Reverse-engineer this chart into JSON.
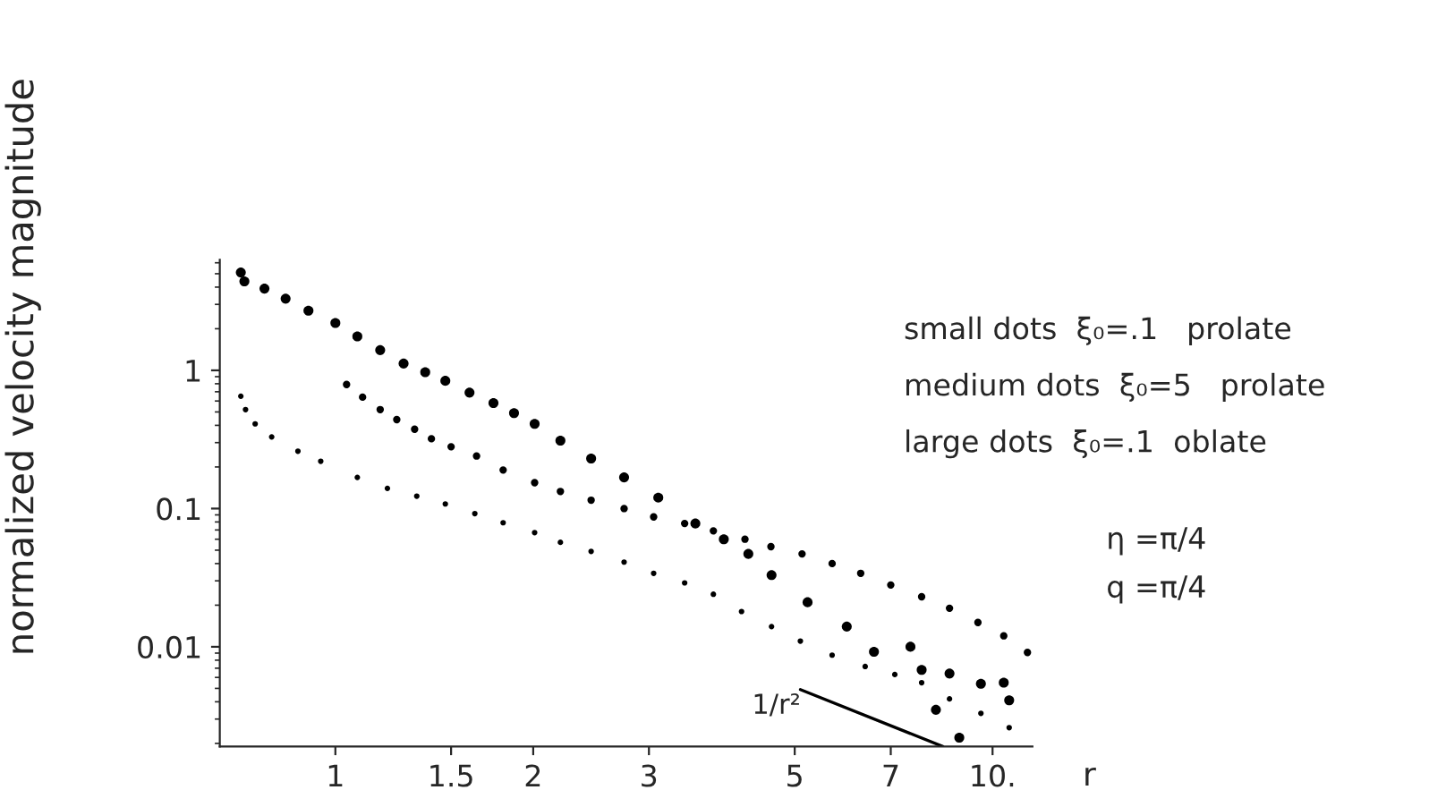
{
  "chart_data": {
    "type": "scatter",
    "xlabel": "r",
    "ylabel": "normalized velocity magnitude",
    "log": "xy",
    "xlim": [
      0.667,
      11.5
    ],
    "ylim": [
      0.0019,
      6.3
    ],
    "xticks": [
      1,
      1.5,
      2,
      3,
      5,
      7,
      {
        "value": 10,
        "label": "10."
      }
    ],
    "yticks": [
      {
        "value": 0.01,
        "label": "0.01"
      },
      {
        "value": 0.1,
        "label": "0.1"
      },
      1
    ],
    "series": [
      {
        "color": "#000000",
        "marker": "circle",
        "x": [
          0.718,
          0.73,
          0.755,
          0.8,
          0.877,
          0.95,
          1.08,
          1.2,
          1.33,
          1.47,
          1.63,
          1.8,
          2.01,
          2.2,
          2.45,
          2.75,
          3.05,
          3.4,
          3.76,
          4.15,
          4.61,
          5.1,
          5.7,
          6.4,
          7.1,
          7.8,
          8.6,
          9.6,
          10.6
        ],
        "values": [
          0.65,
          0.52,
          0.41,
          0.33,
          0.26,
          0.22,
          0.168,
          0.14,
          0.123,
          0.108,
          0.092,
          0.079,
          0.067,
          0.057,
          0.049,
          0.041,
          0.034,
          0.029,
          0.024,
          0.018,
          0.014,
          0.011,
          0.0087,
          0.0072,
          0.0063,
          0.0055,
          0.0042,
          0.0033,
          0.0026
        ]
      },
      {
        "color": "#000000",
        "marker": "circle",
        "x": [
          1.04,
          1.1,
          1.17,
          1.24,
          1.32,
          1.4,
          1.5,
          1.64,
          1.8,
          2.01,
          2.2,
          2.45,
          2.75,
          3.05,
          3.4,
          3.76,
          4.2,
          4.6,
          5.13,
          5.7,
          6.3,
          7.0,
          7.8,
          8.6,
          9.5,
          10.4,
          11.3
        ],
        "values": [
          0.79,
          0.64,
          0.52,
          0.44,
          0.375,
          0.32,
          0.28,
          0.24,
          0.19,
          0.154,
          0.133,
          0.115,
          0.1,
          0.087,
          0.078,
          0.069,
          0.06,
          0.053,
          0.047,
          0.04,
          0.034,
          0.028,
          0.023,
          0.019,
          0.015,
          0.012,
          0.0091
        ]
      },
      {
        "color": "#000000",
        "marker": "circle",
        "x": [
          0.718,
          0.727,
          0.78,
          0.84,
          0.91,
          1.0,
          1.08,
          1.17,
          1.27,
          1.37,
          1.47,
          1.6,
          1.74,
          1.87,
          2.01,
          2.2,
          2.45,
          2.75,
          3.1,
          3.53,
          3.9,
          4.25,
          4.61,
          5.23,
          6.0,
          6.6,
          7.5,
          7.8,
          8.6,
          8.2,
          8.9,
          9.6,
          10.4,
          10.6
        ],
        "values": [
          5.1,
          4.4,
          3.9,
          3.3,
          2.7,
          2.2,
          1.76,
          1.4,
          1.12,
          0.97,
          0.84,
          0.69,
          0.58,
          0.49,
          0.41,
          0.31,
          0.23,
          0.168,
          0.12,
          0.078,
          0.06,
          0.047,
          0.033,
          0.021,
          0.014,
          0.0092,
          0.01,
          0.0068,
          0.0064,
          0.0035,
          0.0022,
          0.0054,
          0.0055,
          0.0041
        ]
      },
      {
        "type": "line",
        "marker": "none",
        "color": "#000000",
        "x": [
          5.1,
          8.4
        ],
        "values": [
          0.0049,
          0.0019
        ]
      }
    ],
    "annotations": [
      "small dots  ξ₀=.1   prolate",
      "medium dots  ξ₀=5   prolate",
      "large dots  ξ₀=.1  oblate",
      "η =π/4",
      "q =π/4",
      "1/r²"
    ]
  }
}
